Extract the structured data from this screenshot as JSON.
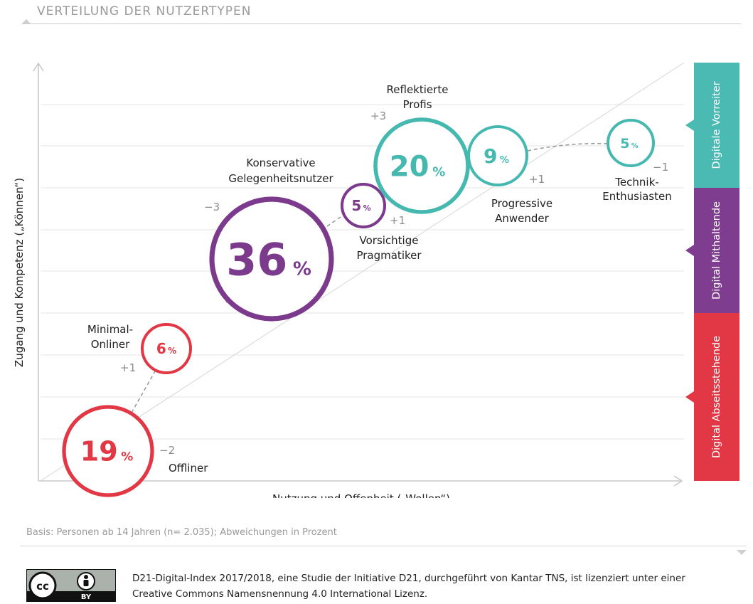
{
  "title": "VERTEILUNG DER NUTZERTYPEN",
  "basis": "Basis: Personen ab 14 Jahren (n= 2.035); Abweichungen in Prozent",
  "license": {
    "text": "D21-Digital-Index 2017/2018, eine Studie der Initiative D21, durchgeführt von Kantar TNS, ist lizenziert unter einer Creative Commons Namensnennung 4.0 International Lizenz.",
    "badge_cc": "cc",
    "badge_by": "BY"
  },
  "colors": {
    "red": "#e23744",
    "purple": "#7b3a8c",
    "teal": "#45b8b0",
    "grid": "#e4e4e4",
    "label_grey": "#8c8c8c"
  },
  "groups": [
    {
      "name": "Digitale Vorreiter",
      "color": "#4bbab3"
    },
    {
      "name": "Digital Mithaltende",
      "color": "#7e3d8f"
    },
    {
      "name": "Digital Abseitsstehende",
      "color": "#e23744"
    }
  ],
  "chart_data": {
    "type": "scatter",
    "xlabel": "Nutzung und Offenheit („Wollen“)",
    "ylabel": "Zugang und Kompetenz („Können“)",
    "series": [
      {
        "name": "Offliner",
        "value": 19,
        "change": "−2",
        "group": "Digital Abseitsstehende"
      },
      {
        "name": "Minimal-Onliner",
        "value": 6,
        "change": "+1",
        "group": "Digital Abseitsstehende"
      },
      {
        "name": "Konservative Gelegenheitsnutzer",
        "value": 36,
        "change": "−3",
        "group": "Digital Mithaltende"
      },
      {
        "name": "Vorsichtige Pragmatiker",
        "value": 5,
        "change": "+1",
        "group": "Digital Mithaltende"
      },
      {
        "name": "Reflektierte Profis",
        "value": 20,
        "change": "+3",
        "group": "Digitale Vorreiter"
      },
      {
        "name": "Progressive Anwender",
        "value": 9,
        "change": "+1",
        "group": "Digitale Vorreiter"
      },
      {
        "name": "Technik-Enthusiasten",
        "value": 5,
        "change": "−1",
        "group": "Digitale Vorreiter"
      }
    ],
    "grid": true
  }
}
